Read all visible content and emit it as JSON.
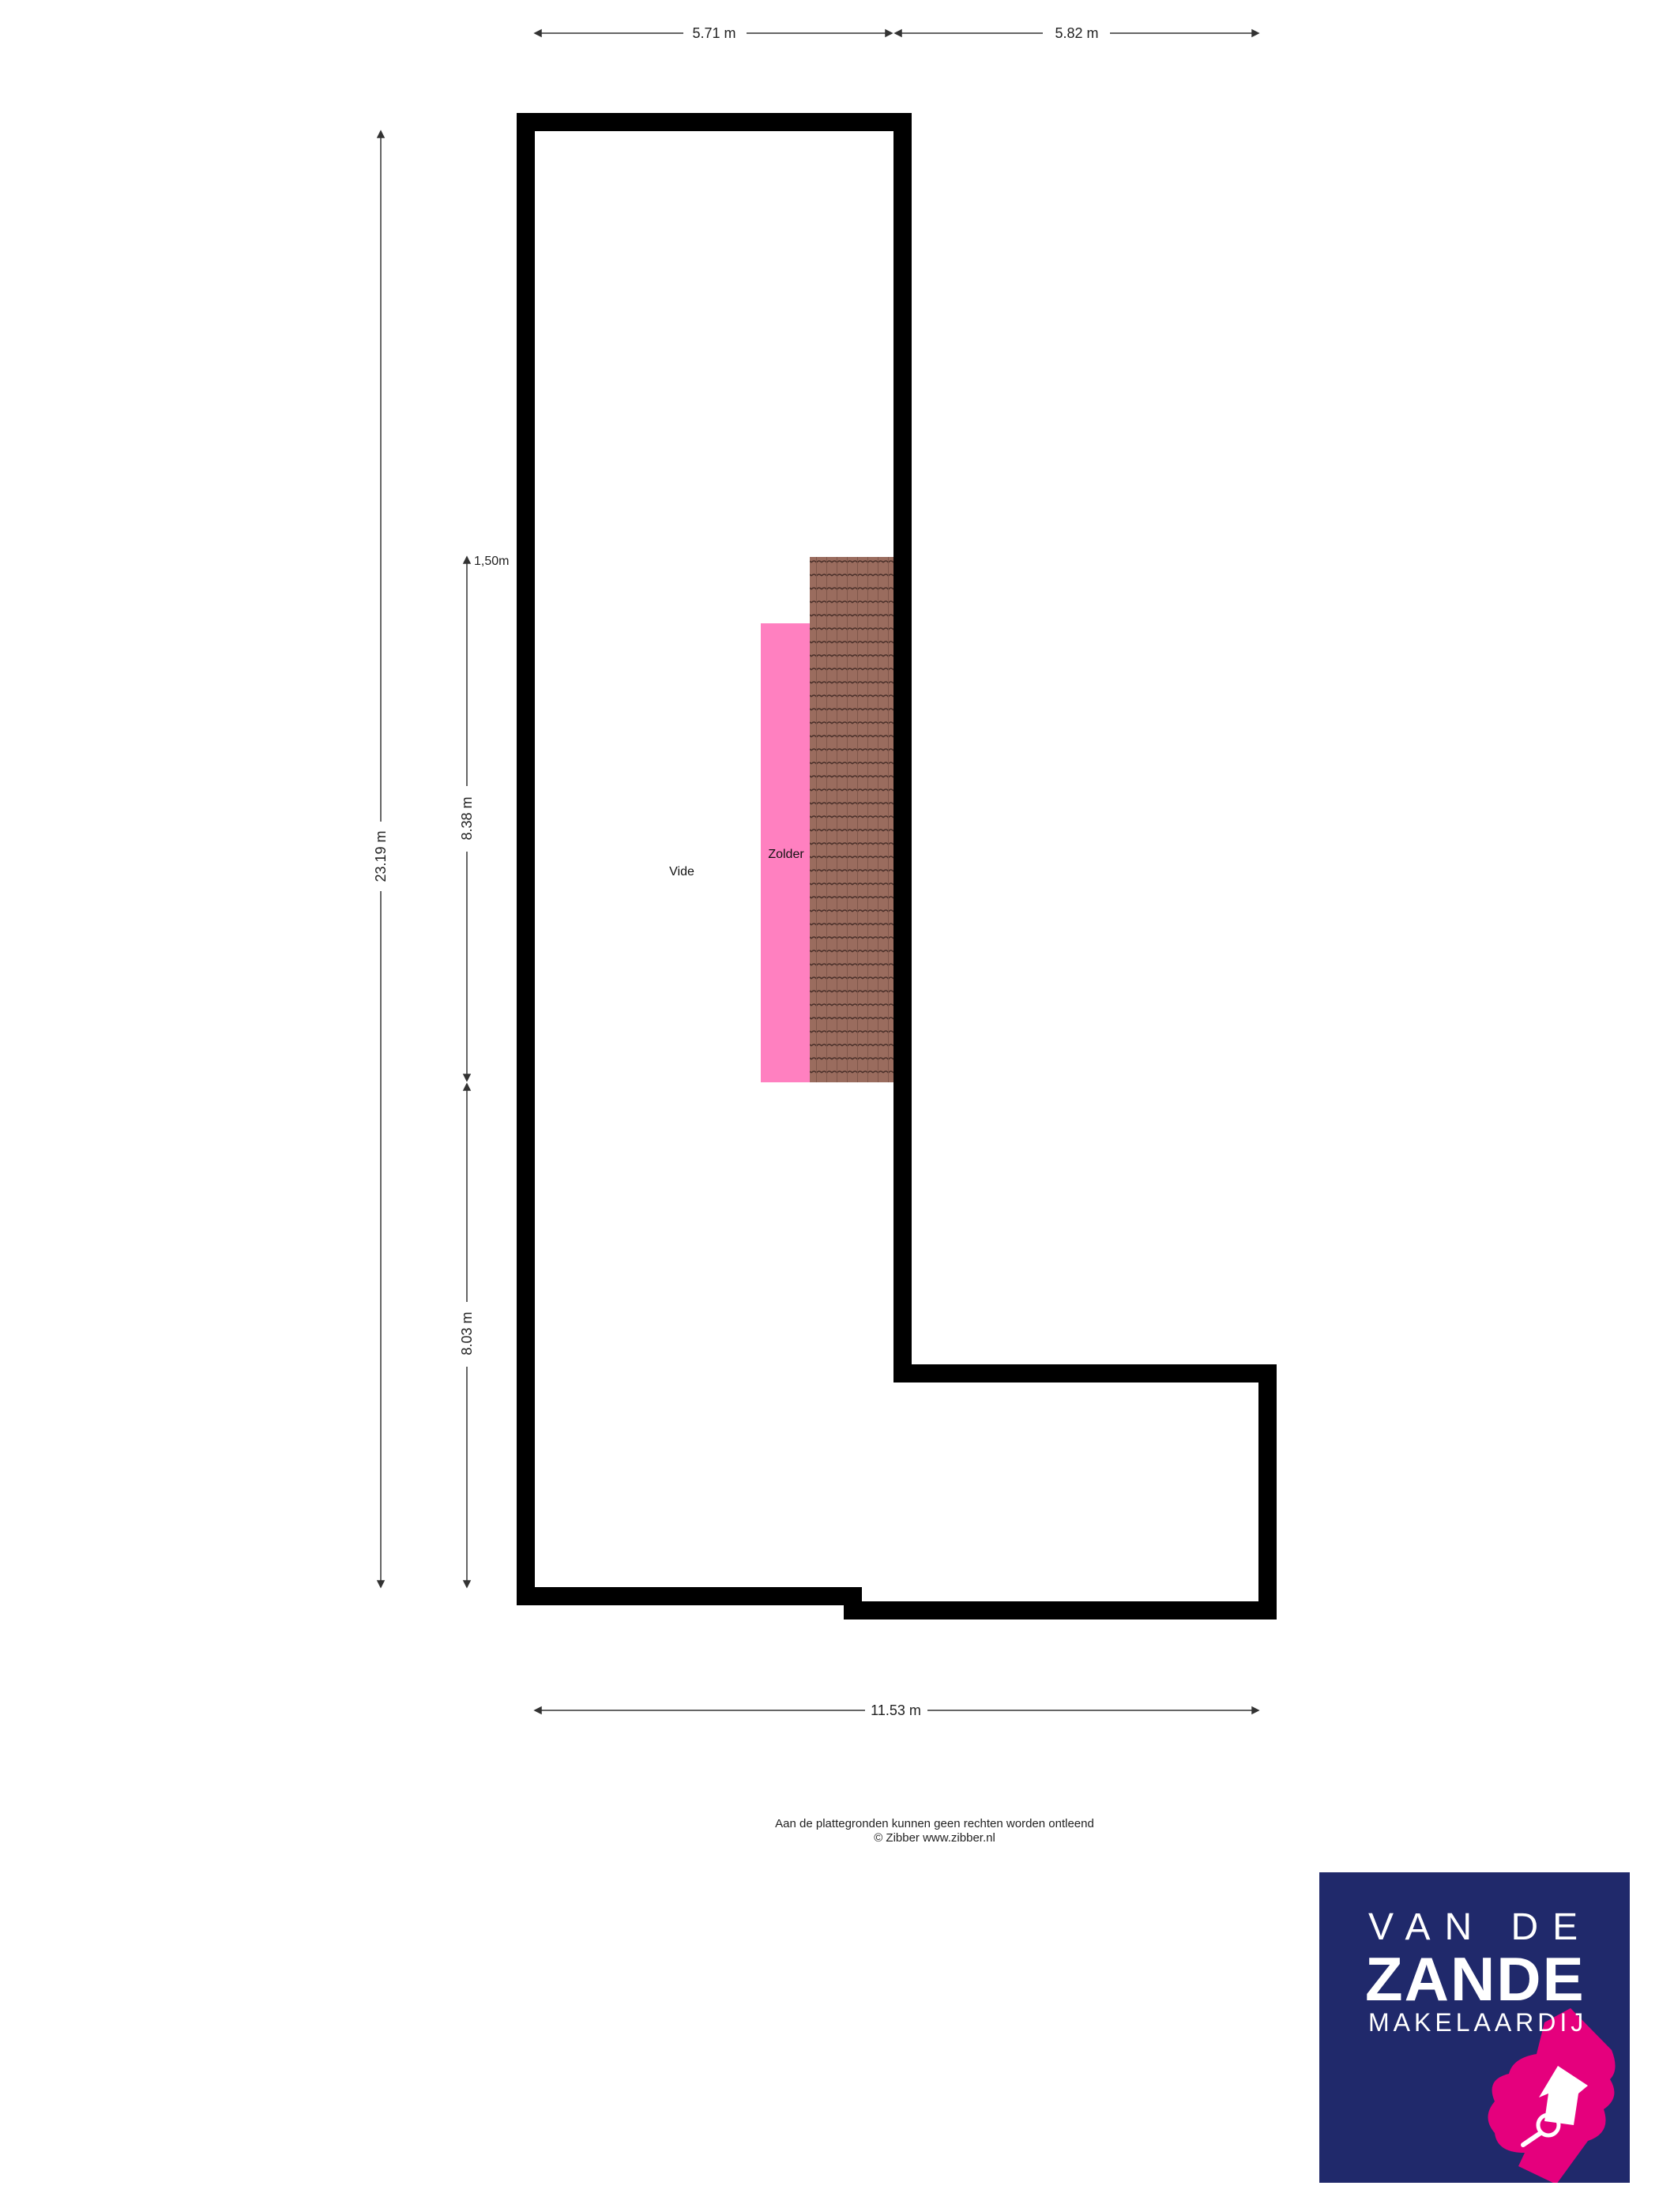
{
  "floorplan": {
    "dimensions": {
      "top_left": "5.71 m",
      "top_right": "5.82 m",
      "left_total": "23.19 m",
      "inner_upper": "8.38 m",
      "inner_lower": "8.03 m",
      "height_mark": "1,50m",
      "bottom_total": "11.53 m"
    },
    "rooms": {
      "vide": "Vide",
      "zolder": "Zolder"
    },
    "colors": {
      "wall": "#000000",
      "zolder_area": "#ff80c0",
      "roof_tiles": "#9a6c5e"
    }
  },
  "footer": {
    "disclaimer": "Aan de plattegronden kunnen geen rechten worden ontleend",
    "credit": "© Zibber www.zibber.nl"
  },
  "logo": {
    "line1": "VAN DE",
    "line2": "ZANDE",
    "line3": "MAKELAARDIJ",
    "background": "#20296b",
    "accent": "#e5007d"
  }
}
